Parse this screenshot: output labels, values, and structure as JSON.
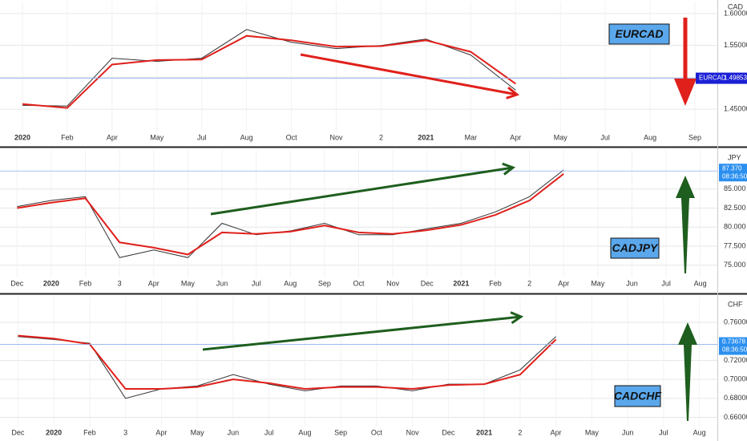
{
  "chart_data": [
    {
      "type": "line",
      "title": "EURCAD",
      "currency": "CAD",
      "categories": [
        "2020",
        "Feb",
        "Apr",
        "May",
        "Jul",
        "Aug",
        "Oct",
        "Nov",
        "2",
        "2021",
        "Mar",
        "Apr",
        "May",
        "Jul",
        "Aug",
        "Sep"
      ],
      "series": [
        {
          "color": "#333333",
          "values": [
            1.456,
            1.455,
            1.53,
            1.525,
            1.53,
            1.575,
            1.555,
            1.545,
            1.55,
            1.56,
            1.535,
            1.48,
            null,
            null,
            null,
            null
          ]
        },
        {
          "color": "#e0201b",
          "values": [
            1.458,
            1.452,
            1.52,
            1.527,
            1.528,
            1.565,
            1.558,
            1.548,
            1.549,
            1.558,
            1.54,
            1.49,
            null,
            null,
            null,
            null
          ]
        }
      ],
      "ylim": [
        1.42,
        1.615
      ],
      "yticks": [
        {
          "value": 1.45,
          "label": "1.45000"
        },
        {
          "value": 1.5,
          "label": "1.50000"
        },
        {
          "value": 1.55,
          "label": "1.55000"
        },
        {
          "value": 1.6,
          "label": "1.60000"
        }
      ],
      "last_price": 1.49853,
      "arrow_color": "#e0201b",
      "grid": true
    },
    {
      "type": "line",
      "title": "CADJPY",
      "currency": "JPY",
      "categories": [
        "Dec",
        "2020",
        "Feb",
        "3",
        "Apr",
        "May",
        "Jun",
        "Jul",
        "Aug",
        "Sep",
        "Oct",
        "Nov",
        "Dec",
        "2021",
        "Feb",
        "2",
        "Apr",
        "May",
        "Jun",
        "Jul",
        "Aug"
      ],
      "series": [
        {
          "color": "#333333",
          "values": [
            82.7,
            83.5,
            84,
            76,
            77,
            76,
            80.5,
            79,
            79.5,
            80.5,
            79,
            79,
            79.8,
            80.5,
            82,
            84,
            87.5,
            null,
            null,
            null,
            null
          ]
        },
        {
          "color": "#e0201b",
          "values": [
            82.5,
            83.2,
            83.8,
            78,
            77.3,
            76.4,
            79.3,
            79.1,
            79.4,
            80.2,
            79.3,
            79.1,
            79.6,
            80.3,
            81.6,
            83.5,
            87,
            null,
            null,
            null,
            null
          ]
        }
      ],
      "ylim": [
        73.5,
        89.5
      ],
      "yticks": [
        {
          "value": 75,
          "label": "75.000"
        },
        {
          "value": 77.5,
          "label": "77.500"
        },
        {
          "value": 80,
          "label": "80.000"
        },
        {
          "value": 82.5,
          "label": "82.500"
        },
        {
          "value": 85,
          "label": "85.000"
        }
      ],
      "last_price": {
        "value": 87.37,
        "label": "87.370"
      },
      "time": "08:36:50",
      "arrow_color": "#1e5e1e",
      "grid": true
    },
    {
      "type": "line",
      "title": "CADCHF",
      "currency": "CHF",
      "categories": [
        "Dec",
        "2020",
        "Feb",
        "3",
        "Apr",
        "May",
        "Jun",
        "Jul",
        "Aug",
        "Sep",
        "Oct",
        "Nov",
        "Dec",
        "2021",
        "2",
        "Apr",
        "May",
        "Jun",
        "Jul",
        "Aug"
      ],
      "series": [
        {
          "color": "#333333",
          "values": [
            0.745,
            0.742,
            0.738,
            0.68,
            0.69,
            0.693,
            0.705,
            0.695,
            0.688,
            0.693,
            0.693,
            0.688,
            0.695,
            0.695,
            0.71,
            0.745,
            null,
            null,
            null,
            null
          ]
        },
        {
          "color": "#e0201b",
          "values": [
            0.746,
            0.743,
            0.737,
            0.69,
            0.69,
            0.692,
            0.7,
            0.696,
            0.69,
            0.692,
            0.692,
            0.69,
            0.694,
            0.695,
            0.705,
            0.742,
            null,
            null,
            null,
            null
          ]
        }
      ],
      "ylim": [
        0.652,
        0.782
      ],
      "yticks": [
        {
          "value": 0.66,
          "label": "0.66000"
        },
        {
          "value": 0.68,
          "label": "0.68000"
        },
        {
          "value": 0.7,
          "label": "0.70000"
        },
        {
          "value": 0.72,
          "label": "0.72000"
        },
        {
          "value": 0.76,
          "label": "0.76000"
        }
      ],
      "last_price": 0.73678,
      "time": "08:36:50",
      "arrow_color": "#1e5e1e",
      "grid": true
    }
  ]
}
